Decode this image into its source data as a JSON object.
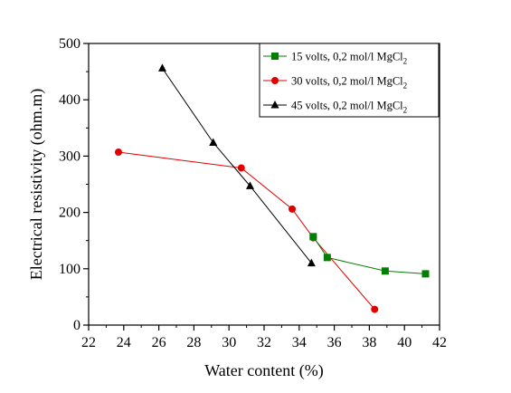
{
  "chart_data": {
    "type": "line",
    "xlabel": "Water content (%)",
    "ylabel": "Electrical resistivity (ohm.m)",
    "xlim": [
      22,
      42
    ],
    "ylim": [
      0,
      500
    ],
    "x_ticks": [
      22,
      24,
      26,
      28,
      30,
      32,
      34,
      36,
      38,
      40,
      42
    ],
    "y_ticks": [
      0,
      100,
      200,
      300,
      400,
      500
    ],
    "legend_position": "top-right",
    "series": [
      {
        "name": "15 volts, 0,2 mol/l MgCl",
        "name_subscript": "2",
        "color": "#008000",
        "marker": "square",
        "x": [
          34.8,
          35.6,
          38.9,
          41.2
        ],
        "y": [
          157,
          120,
          96,
          91
        ]
      },
      {
        "name": "30 volts, 0,2 mol/l MgCl",
        "name_subscript": "2",
        "color": "#e00000",
        "marker": "circle",
        "x": [
          23.7,
          30.7,
          33.6,
          34.8,
          38.3
        ],
        "y": [
          307,
          279,
          206,
          155,
          28
        ]
      },
      {
        "name": "45 volts, 0,2 mol/l MgCl",
        "name_subscript": "2",
        "color": "#000000",
        "marker": "triangle",
        "x": [
          26.2,
          29.1,
          31.2,
          34.7
        ],
        "y": [
          456,
          324,
          247,
          110
        ]
      }
    ]
  }
}
